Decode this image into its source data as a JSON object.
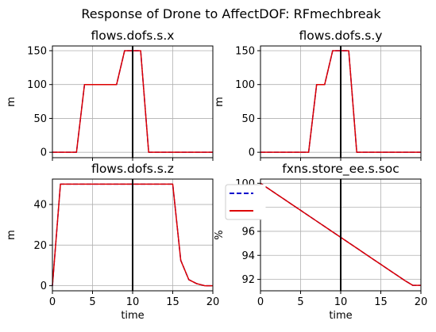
{
  "figure": {
    "title": "Response of Drone to AffectDOF: RFmechbreak"
  },
  "colors": {
    "series_a": "#0000cc",
    "series_b": "#dd0000",
    "marker_line": "#000000",
    "grid": "#b0b0b0"
  },
  "legend": {
    "placement": "between-lower-plots-left",
    "entries": [
      {
        "style": "dashed",
        "color": "#0000cc"
      },
      {
        "style": "solid",
        "color": "#dd0000"
      }
    ]
  },
  "chart_data": [
    {
      "type": "line",
      "title": "flows.dofs.s.x",
      "xlabel": "",
      "ylabel": "m",
      "xlim": [
        0,
        20
      ],
      "ylim": [
        -8,
        157
      ],
      "xticks": [
        0,
        5,
        10,
        15,
        20
      ],
      "xticklabels_shown": false,
      "yticks": [
        0,
        50,
        100,
        150
      ],
      "yticklabels": [
        "0",
        "50",
        "100",
        "150"
      ],
      "grid": true,
      "vline_x": 10,
      "x": [
        0,
        1,
        2,
        3,
        4,
        5,
        6,
        7,
        8,
        9,
        10,
        11,
        12,
        13,
        14,
        15,
        16,
        17,
        18,
        19,
        20
      ],
      "series": [
        {
          "style": "dashed",
          "color": "#0000cc",
          "values": [
            0,
            0,
            0,
            0,
            100,
            100,
            100,
            100,
            100,
            150,
            150,
            150,
            0,
            0,
            0,
            0,
            0,
            0,
            0,
            0,
            0
          ]
        },
        {
          "style": "solid",
          "color": "#dd0000",
          "values": [
            0,
            0,
            0,
            0,
            100,
            100,
            100,
            100,
            100,
            150,
            150,
            150,
            0,
            0,
            0,
            0,
            0,
            0,
            0,
            0,
            0
          ]
        }
      ]
    },
    {
      "type": "line",
      "title": "flows.dofs.s.y",
      "xlabel": "",
      "ylabel": "m",
      "xlim": [
        0,
        20
      ],
      "ylim": [
        -8,
        157
      ],
      "xticks": [
        0,
        5,
        10,
        15,
        20
      ],
      "xticklabels_shown": false,
      "yticks": [
        0,
        50,
        100,
        150
      ],
      "yticklabels": [
        "0",
        "50",
        "100",
        "150"
      ],
      "grid": true,
      "vline_x": 10,
      "x": [
        0,
        1,
        2,
        3,
        4,
        5,
        6,
        7,
        8,
        9,
        10,
        11,
        12,
        13,
        14,
        15,
        16,
        17,
        18,
        19,
        20
      ],
      "series": [
        {
          "style": "dashed",
          "color": "#0000cc",
          "values": [
            0,
            0,
            0,
            0,
            0,
            0,
            0,
            100,
            100,
            150,
            150,
            150,
            0,
            0,
            0,
            0,
            0,
            0,
            0,
            0,
            0
          ]
        },
        {
          "style": "solid",
          "color": "#dd0000",
          "values": [
            0,
            0,
            0,
            0,
            0,
            0,
            0,
            100,
            100,
            150,
            150,
            150,
            0,
            0,
            0,
            0,
            0,
            0,
            0,
            0,
            0
          ]
        }
      ]
    },
    {
      "type": "line",
      "title": "flows.dofs.s.z",
      "xlabel": "time",
      "ylabel": "m",
      "xlim": [
        0,
        20
      ],
      "ylim": [
        -2.5,
        52.5
      ],
      "xticks": [
        0,
        5,
        10,
        15,
        20
      ],
      "xticklabels": [
        "0",
        "5",
        "10",
        "15",
        "20"
      ],
      "xticklabels_shown": true,
      "yticks": [
        0,
        20,
        40
      ],
      "yticklabels": [
        "0",
        "20",
        "40"
      ],
      "grid": true,
      "vline_x": 10,
      "x": [
        0,
        1,
        2,
        3,
        4,
        5,
        6,
        7,
        8,
        9,
        10,
        11,
        12,
        13,
        14,
        15,
        16,
        17,
        18,
        19,
        20
      ],
      "series": [
        {
          "style": "dashed",
          "color": "#0000cc",
          "values": [
            0,
            50,
            50,
            50,
            50,
            50,
            50,
            50,
            50,
            50,
            50,
            50,
            50,
            50,
            50,
            50,
            12.5,
            3,
            1,
            0,
            0
          ]
        },
        {
          "style": "solid",
          "color": "#dd0000",
          "values": [
            0,
            50,
            50,
            50,
            50,
            50,
            50,
            50,
            50,
            50,
            50,
            50,
            50,
            50,
            50,
            50,
            12.5,
            3,
            1,
            0,
            0
          ]
        }
      ]
    },
    {
      "type": "line",
      "title": "fxns.store_ee.s.soc",
      "xlabel": "time",
      "ylabel": "%",
      "xlim": [
        0,
        20
      ],
      "ylim": [
        91.05,
        100.35
      ],
      "xticks": [
        0,
        5,
        10,
        15,
        20
      ],
      "xticklabels": [
        "0",
        "5",
        "10",
        "15",
        "20"
      ],
      "xticklabels_shown": true,
      "yticks": [
        92,
        94,
        96,
        98,
        100
      ],
      "yticklabels": [
        "92",
        "94",
        "96",
        "98",
        "100"
      ],
      "grid": true,
      "vline_x": 10,
      "x": [
        0,
        1,
        2,
        3,
        4,
        5,
        6,
        7,
        8,
        9,
        10,
        11,
        12,
        13,
        14,
        15,
        16,
        17,
        18,
        19,
        20
      ],
      "series": [
        {
          "style": "dashed",
          "color": "#0000cc",
          "values": [
            100,
            99.55,
            99.1,
            98.65,
            98.2,
            97.75,
            97.3,
            96.85,
            96.4,
            95.95,
            95.5,
            95.05,
            94.6,
            94.15,
            93.7,
            93.25,
            92.8,
            92.35,
            91.9,
            91.5,
            91.5
          ]
        },
        {
          "style": "solid",
          "color": "#dd0000",
          "values": [
            100,
            99.55,
            99.1,
            98.65,
            98.2,
            97.75,
            97.3,
            96.85,
            96.4,
            95.95,
            95.5,
            95.05,
            94.6,
            94.15,
            93.7,
            93.25,
            92.8,
            92.35,
            91.9,
            91.5,
            91.5
          ]
        }
      ]
    }
  ]
}
